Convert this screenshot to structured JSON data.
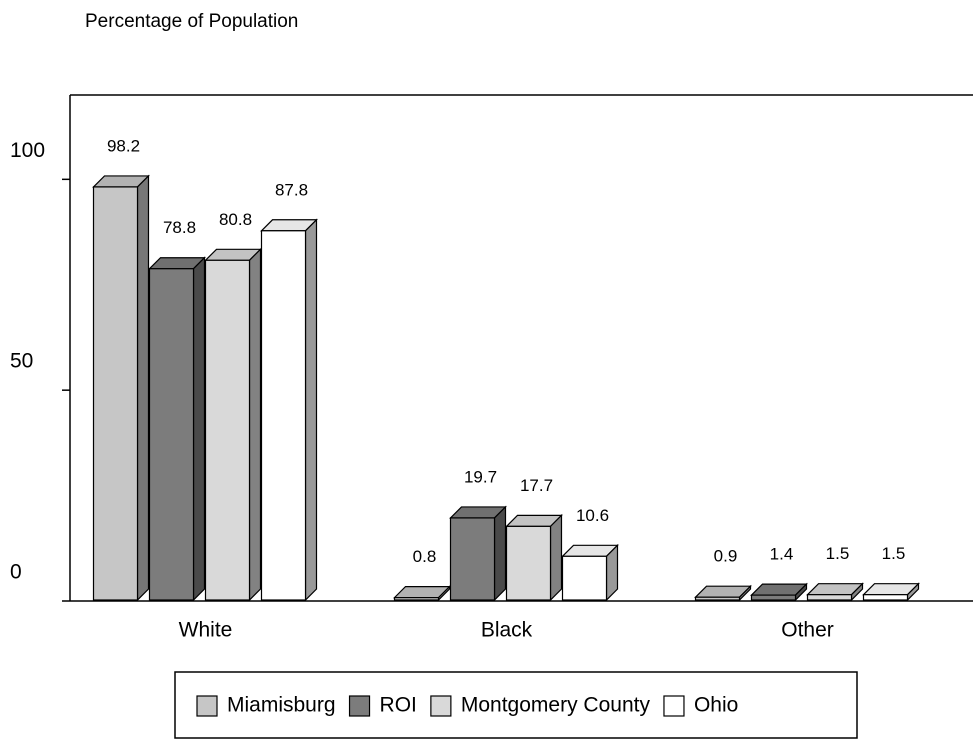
{
  "chart_data": {
    "type": "bar3d",
    "y_axis_label": "Percentage of Population",
    "categories": [
      "White",
      "Black",
      "Other"
    ],
    "series": [
      {
        "name": "Miamisburg",
        "color": "#c6c6c6",
        "values": [
          98.2,
          0.8,
          0.9
        ]
      },
      {
        "name": "ROI",
        "color": "#7c7c7c",
        "values": [
          78.8,
          19.7,
          1.4
        ]
      },
      {
        "name": "Montgomery County",
        "color": "#d9d9d9",
        "values": [
          80.8,
          17.7,
          1.5
        ]
      },
      {
        "name": "Ohio",
        "color": "#ffffff",
        "values": [
          87.8,
          10.6,
          1.5
        ]
      }
    ],
    "ylim": [
      0,
      120
    ],
    "yticks": [
      0,
      50,
      100
    ],
    "legend": "bottom"
  }
}
